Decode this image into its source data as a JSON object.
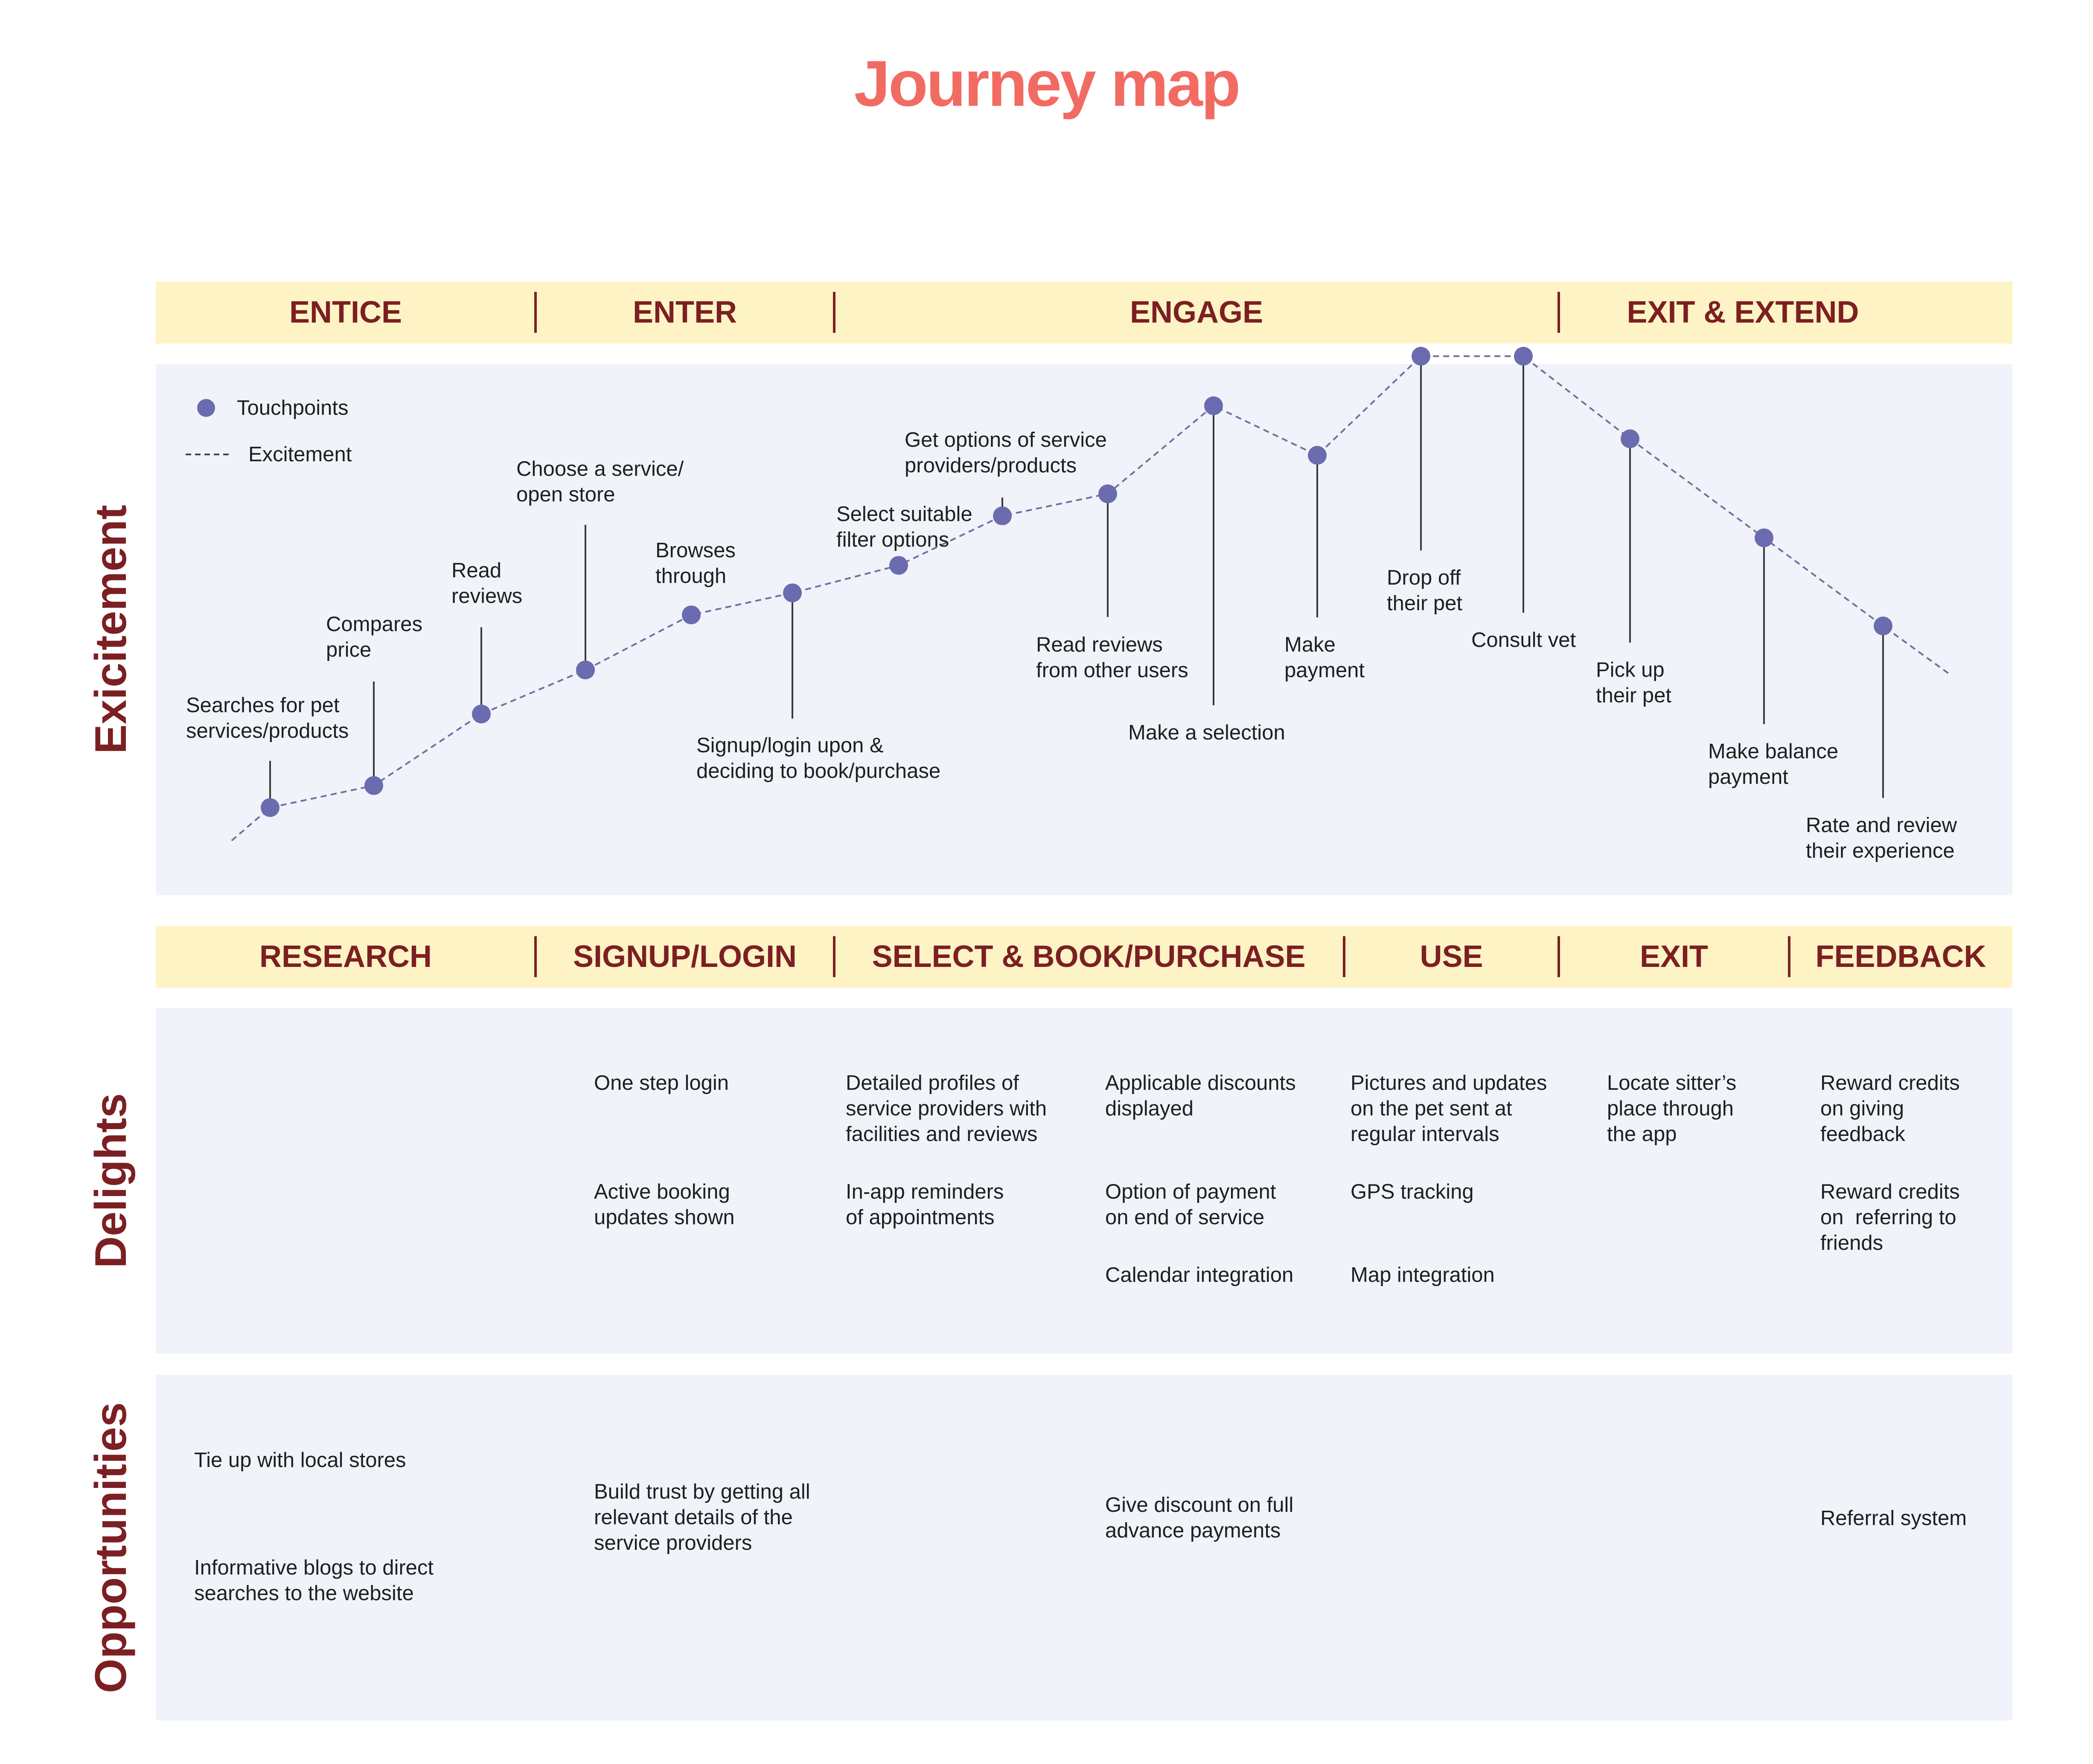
{
  "title": "Journey map",
  "colors": {
    "title": "#f26b63",
    "heading": "#7c1f23",
    "band_bg": "#fdf3c5",
    "panel_bg": "#f0f3f9",
    "touchpoint": "#6b6bb0",
    "excitement_line": "#6f6f9e"
  },
  "phases": [
    {
      "label": "ENTICE"
    },
    {
      "label": "ENTER"
    },
    {
      "label": "ENGAGE"
    },
    {
      "label": "EXIT & EXTEND"
    }
  ],
  "steps": [
    {
      "label": "RESEARCH"
    },
    {
      "label": "SIGNUP/LOGIN"
    },
    {
      "label": "SELECT & BOOK/PURCHASE"
    },
    {
      "label": "USE"
    },
    {
      "label": "EXIT"
    },
    {
      "label": "FEEDBACK"
    }
  ],
  "rows": {
    "excitement": "Exicitement",
    "delights": "Delights",
    "opportunities": "Opportunities"
  },
  "legend": {
    "touchpoints": "Touchpoints",
    "excitement": "Excitement"
  },
  "touchpoints": [
    {
      "label": "Searches for pet\nservices/products",
      "level": 0.06,
      "label_side": "above"
    },
    {
      "label": "Compares\nprice",
      "level": 0.1,
      "label_side": "above"
    },
    {
      "label": "Read\nreviews",
      "level": 0.23,
      "label_side": "above"
    },
    {
      "label": "Choose a service/\nopen store",
      "level": 0.31,
      "label_side": "above"
    },
    {
      "label": "Browses\nthrough",
      "level": 0.41,
      "label_side": "above"
    },
    {
      "label": "Signup/login upon &\ndeciding to book/purchase",
      "level": 0.45,
      "label_side": "below"
    },
    {
      "label": "Select suitable\nfilter options",
      "level": 0.5,
      "label_side": "above"
    },
    {
      "label": "Get options of service\nproviders/products",
      "level": 0.59,
      "label_side": "above"
    },
    {
      "label": "Read reviews\nfrom other users",
      "level": 0.63,
      "label_side": "below"
    },
    {
      "label": "Make a selection",
      "level": 0.79,
      "label_side": "below"
    },
    {
      "label": "Make\npayment",
      "level": 0.7,
      "label_side": "below"
    },
    {
      "label": "Drop off\ntheir pet",
      "level": 0.88,
      "label_side": "below"
    },
    {
      "label": "Consult vet",
      "level": 0.88,
      "label_side": "below"
    },
    {
      "label": "Pick up\ntheir pet",
      "level": 0.73,
      "label_side": "below"
    },
    {
      "label": "Make balance\npayment",
      "level": 0.55,
      "label_side": "below"
    },
    {
      "label": "Rate and review\ntheir experience",
      "level": 0.39,
      "label_side": "below"
    }
  ],
  "delights": [
    "One step login",
    "Active booking\nupdates shown",
    "Detailed profiles of\nservice providers with\nfacilities and reviews",
    "In-app reminders\nof appointments",
    "Applicable discounts\ndisplayed",
    "Option of payment\non end of service",
    "Calendar integration",
    "Pictures and updates\non the pet sent at\nregular intervals",
    "GPS tracking",
    "Map integration",
    "Locate sitter’s\nplace through\nthe app",
    "Reward credits\non giving\nfeedback",
    "Reward credits\non  referring to\nfriends"
  ],
  "opportunities": [
    "Tie up with local stores",
    "Informative blogs to direct\nsearches to the website",
    "Build trust by getting all\nrelevant details of the\nservice providers",
    "Give discount on full\nadvance payments",
    "Referral system"
  ]
}
